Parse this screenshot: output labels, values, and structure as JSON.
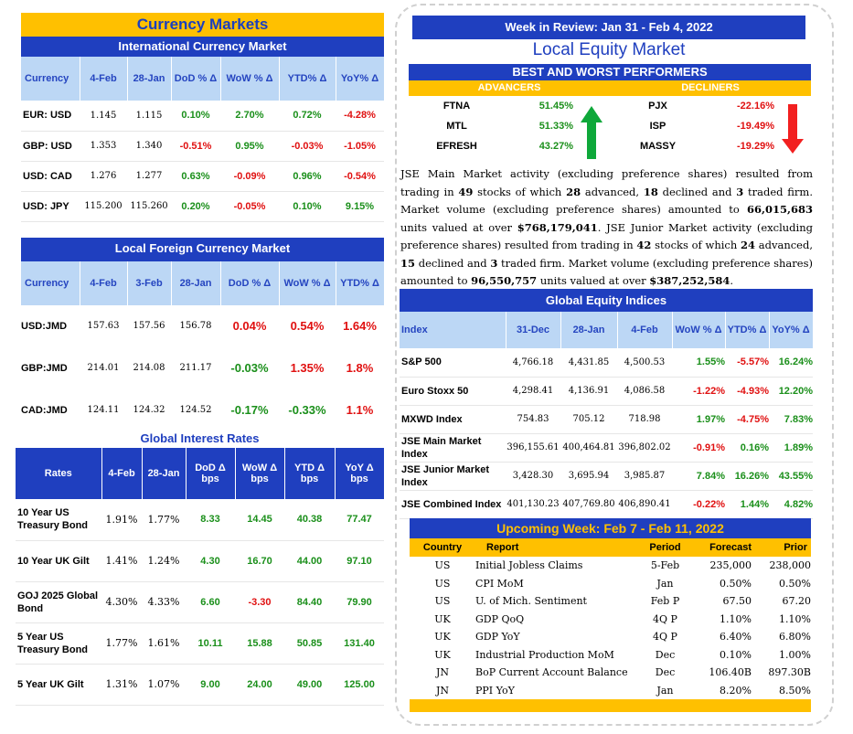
{
  "currency_markets": {
    "title": "Currency Markets",
    "subtitle": "International Currency Market",
    "columns": [
      "Currency",
      "4-Feb",
      "28-Jan",
      "DoD % Δ",
      "WoW % Δ",
      "YTD% Δ",
      "YoY% Δ"
    ],
    "rows": [
      {
        "c": "EUR: USD",
        "v1": "1.145",
        "v2": "1.115",
        "dod": "0.10%",
        "wow": "2.70%",
        "ytd": "0.72%",
        "yoy": "-4.28%"
      },
      {
        "c": "GBP: USD",
        "v1": "1.353",
        "v2": "1.340",
        "dod": "-0.51%",
        "wow": "0.95%",
        "ytd": "-0.03%",
        "yoy": "-1.05%"
      },
      {
        "c": "USD: CAD",
        "v1": "1.276",
        "v2": "1.277",
        "dod": "0.63%",
        "wow": "-0.09%",
        "ytd": "0.96%",
        "yoy": "-0.54%"
      },
      {
        "c": "USD: JPY",
        "v1": "115.200",
        "v2": "115.260",
        "dod": "0.20%",
        "wow": "-0.05%",
        "ytd": "0.10%",
        "yoy": "9.15%"
      }
    ]
  },
  "local_fx": {
    "title": "Local Foreign Currency Market",
    "columns": [
      "Currency",
      "4-Feb",
      "3-Feb",
      "28-Jan",
      "DoD % Δ",
      "WoW % Δ",
      "YTD% Δ"
    ],
    "rows": [
      {
        "c": "USD:JMD",
        "v1": "157.63",
        "v2": "157.56",
        "v3": "156.78",
        "dod": "0.04%",
        "wow": "0.54%",
        "ytd": "1.64%"
      },
      {
        "c": "GBP:JMD",
        "v1": "214.01",
        "v2": "214.08",
        "v3": "211.17",
        "dod": "-0.03%",
        "wow": "1.35%",
        "ytd": "1.8%"
      },
      {
        "c": "CAD:JMD",
        "v1": "124.11",
        "v2": "124.32",
        "v3": "124.52",
        "dod": "-0.17%",
        "wow": "-0.33%",
        "ytd": "1.1%"
      }
    ]
  },
  "global_rates": {
    "title": "Global Interest Rates",
    "columns": [
      "Rates",
      "4-Feb",
      "28-Jan",
      "DoD Δ bps",
      "WoW Δ bps",
      "YTD Δ bps",
      "YoY Δ bps"
    ],
    "rows": [
      {
        "r": "10 Year US Treasury Bond",
        "v1": "1.91%",
        "v2": "1.77%",
        "dod": "8.33",
        "wow": "14.45",
        "ytd": "40.38",
        "yoy": "77.47"
      },
      {
        "r": "10 Year UK Gilt",
        "v1": "1.41%",
        "v2": "1.24%",
        "dod": "4.30",
        "wow": "16.70",
        "ytd": "44.00",
        "yoy": "97.10"
      },
      {
        "r": "GOJ 2025 Global Bond",
        "v1": "4.30%",
        "v2": "4.33%",
        "dod": "6.60",
        "wow": "-3.30",
        "ytd": "84.40",
        "yoy": "79.90"
      },
      {
        "r": "5 Year US Treasury Bond",
        "v1": "1.77%",
        "v2": "1.61%",
        "dod": "10.11",
        "wow": "15.88",
        "ytd": "50.85",
        "yoy": "131.40"
      },
      {
        "r": "5 Year UK Gilt",
        "v1": "1.31%",
        "v2": "1.07%",
        "dod": "9.00",
        "wow": "24.00",
        "ytd": "49.00",
        "yoy": "125.00"
      }
    ]
  },
  "week_review": {
    "title": "Week in Review:  Jan 31 - Feb 4, 2022",
    "local_title": "Local Equity Market",
    "bw_title": "BEST AND WORST PERFORMERS",
    "adv_label": "ADVANCERS",
    "dec_label": "DECLINERS",
    "performers": [
      {
        "a": "FTNA",
        "ap": "51.45%",
        "d": "PJX",
        "dp": "-22.16%"
      },
      {
        "a": "MTL",
        "ap": "51.33%",
        "d": "ISP",
        "dp": "-19.49%"
      },
      {
        "a": "EFRESH",
        "ap": "43.27%",
        "d": "MASSY",
        "dp": "-19.29%"
      }
    ],
    "paragraph": [
      "JSE Main Market activity (excluding preference shares) resulted from trading in ",
      "49",
      " stocks of which ",
      "28",
      " advanced, ",
      "18",
      " declined and ",
      "3",
      " traded firm. Market volume (excluding preference shares) amounted to ",
      "66,015,683",
      " units valued at over ",
      "$768,179,041",
      ". JSE Junior Market activity (excluding preference shares) resulted from trading in ",
      "42",
      " stocks of which ",
      "24",
      " advanced, ",
      "15",
      " declined and ",
      "3",
      " traded firm. Market volume (excluding preference shares) amounted to ",
      "96,550,757",
      " units valued at over ",
      "$387,252,584",
      "."
    ]
  },
  "global_equity": {
    "title": "Global Equity Indices",
    "columns": [
      "Index",
      "31-Dec",
      "28-Jan",
      "4-Feb",
      "WoW % Δ",
      "YTD% Δ",
      "YoY% Δ"
    ],
    "rows": [
      {
        "i": "S&P 500",
        "v1": "4,766.18",
        "v2": "4,431.85",
        "v3": "4,500.53",
        "wow": "1.55%",
        "ytd": "-5.57%",
        "yoy": "16.24%"
      },
      {
        "i": "Euro Stoxx 50",
        "v1": "4,298.41",
        "v2": "4,136.91",
        "v3": "4,086.58",
        "wow": "-1.22%",
        "ytd": "-4.93%",
        "yoy": "12.20%"
      },
      {
        "i": "MXWD  Index",
        "v1": "754.83",
        "v2": "705.12",
        "v3": "718.98",
        "wow": "1.97%",
        "ytd": "-4.75%",
        "yoy": "7.83%"
      },
      {
        "i": "JSE Main Market Index",
        "v1": "396,155.61",
        "v2": "400,464.81",
        "v3": "396,802.02",
        "wow": "-0.91%",
        "ytd": "0.16%",
        "yoy": "1.89%"
      },
      {
        "i": "JSE Junior Market Index",
        "v1": "3,428.30",
        "v2": "3,695.94",
        "v3": "3,985.87",
        "wow": "7.84%",
        "ytd": "16.26%",
        "yoy": "43.55%"
      },
      {
        "i": "JSE Combined Index",
        "v1": "401,130.23",
        "v2": "407,769.80",
        "v3": "406,890.41",
        "wow": "-0.22%",
        "ytd": "1.44%",
        "yoy": "4.82%"
      }
    ]
  },
  "upcoming": {
    "title": "Upcoming Week:  Feb 7 - Feb 11, 2022",
    "columns": [
      "Country",
      "Report",
      "Period",
      "Forecast",
      "Prior"
    ],
    "rows": [
      {
        "c": "US",
        "r": "Initial Jobless Claims",
        "p": "5-Feb",
        "f": "235,000",
        "pr": "238,000"
      },
      {
        "c": "US",
        "r": "CPI MoM",
        "p": "Jan",
        "f": "0.50%",
        "pr": "0.50%"
      },
      {
        "c": "US",
        "r": "U. of Mich. Sentiment",
        "p": "Feb P",
        "f": "67.50",
        "pr": "67.20"
      },
      {
        "c": "UK",
        "r": "GDP QoQ",
        "p": "4Q P",
        "f": "1.10%",
        "pr": "1.10%"
      },
      {
        "c": "UK",
        "r": "GDP YoY",
        "p": "4Q P",
        "f": "6.40%",
        "pr": "6.80%"
      },
      {
        "c": "UK",
        "r": "Industrial Production MoM",
        "p": "Dec",
        "f": "0.10%",
        "pr": "1.00%"
      },
      {
        "c": "JN",
        "r": "BoP Current Account Balance",
        "p": "Dec",
        "f": "106.40B",
        "pr": "897.30B"
      },
      {
        "c": "JN",
        "r": "PPI YoY",
        "p": "Jan",
        "f": "8.20%",
        "pr": "8.50%"
      }
    ]
  },
  "colors": {
    "blue": "#1f3fbf",
    "yellow": "#ffc000",
    "lightblue": "#bcd7f5",
    "green": "#1a8f1a",
    "red": "#e01010"
  },
  "icons": [
    "up-arrow-icon",
    "down-arrow-icon"
  ]
}
